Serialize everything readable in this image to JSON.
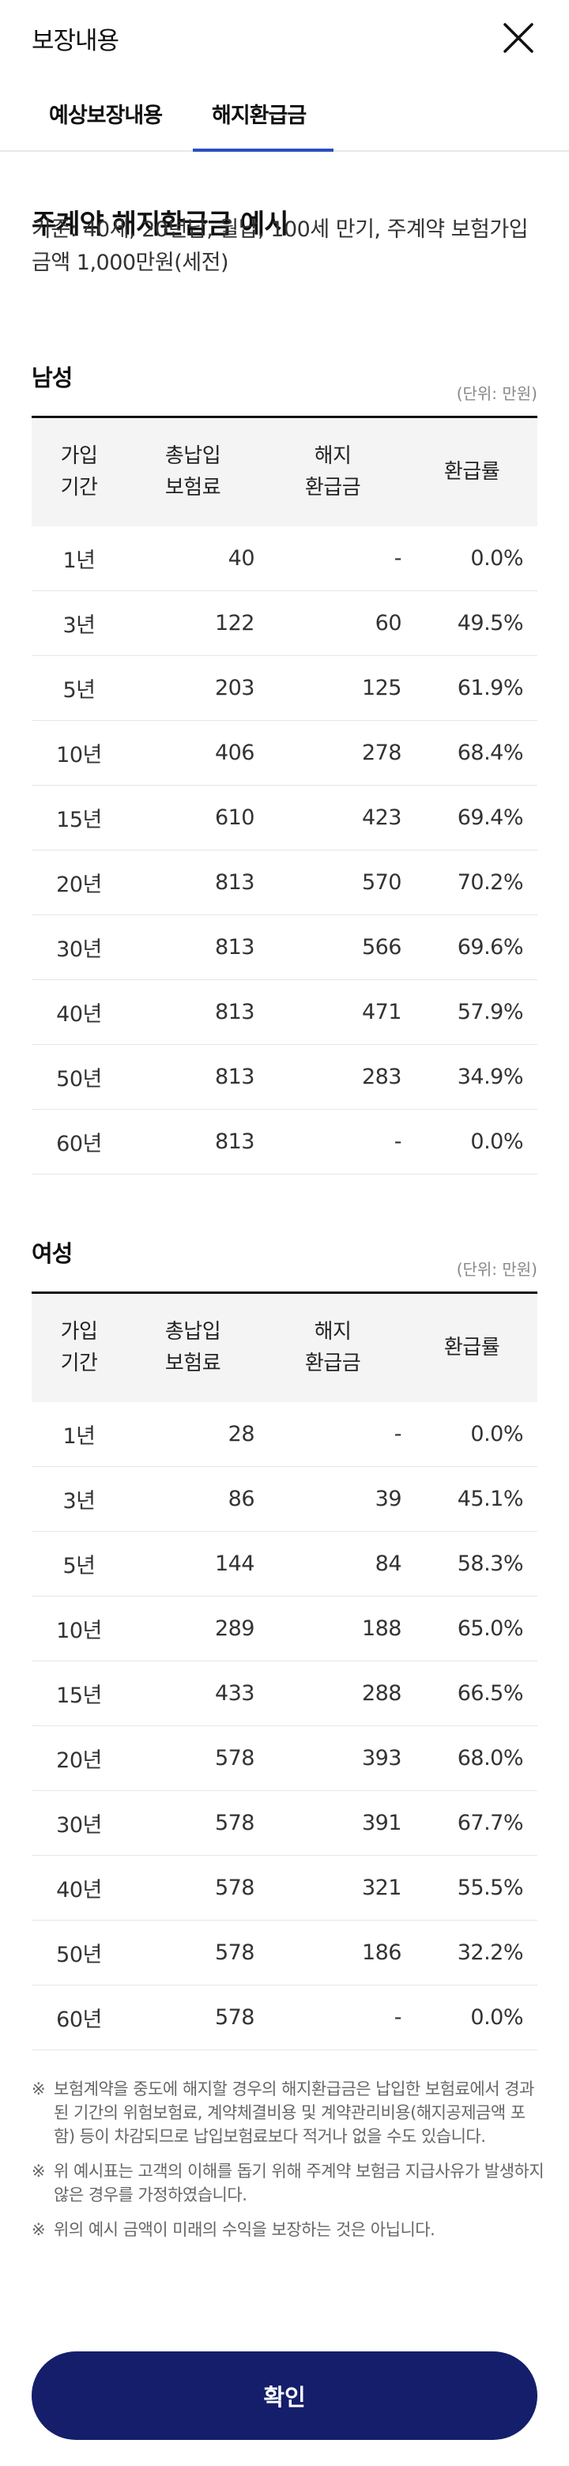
{
  "header": {
    "title": "보장내용"
  },
  "tabs": [
    {
      "label": "예상보장내용"
    },
    {
      "label": "해지환급금"
    }
  ],
  "main": {
    "heading": "주계약 해지환급금 예시",
    "basis": "기준: 40세, 20년납, 월납, 100세 만기, 주계약 보험가입금액 1,000만원(세전)"
  },
  "columns": {
    "period": [
      "가입",
      "기간"
    ],
    "paid": [
      "총납입",
      "보험료"
    ],
    "refund": [
      "해지",
      "환급금"
    ],
    "rate": "환급률"
  },
  "male": {
    "title": "남성",
    "unit": "(단위: 만원)",
    "rows": [
      {
        "period": "1년",
        "paid": "40",
        "refund": "-",
        "rate": "0.0%"
      },
      {
        "period": "3년",
        "paid": "122",
        "refund": "60",
        "rate": "49.5%"
      },
      {
        "period": "5년",
        "paid": "203",
        "refund": "125",
        "rate": "61.9%"
      },
      {
        "period": "10년",
        "paid": "406",
        "refund": "278",
        "rate": "68.4%"
      },
      {
        "period": "15년",
        "paid": "610",
        "refund": "423",
        "rate": "69.4%"
      },
      {
        "period": "20년",
        "paid": "813",
        "refund": "570",
        "rate": "70.2%"
      },
      {
        "period": "30년",
        "paid": "813",
        "refund": "566",
        "rate": "69.6%"
      },
      {
        "period": "40년",
        "paid": "813",
        "refund": "471",
        "rate": "57.9%"
      },
      {
        "period": "50년",
        "paid": "813",
        "refund": "283",
        "rate": "34.9%"
      },
      {
        "period": "60년",
        "paid": "813",
        "refund": "-",
        "rate": "0.0%"
      }
    ]
  },
  "female": {
    "title": "여성",
    "unit": "(단위: 만원)",
    "rows": [
      {
        "period": "1년",
        "paid": "28",
        "refund": "-",
        "rate": "0.0%"
      },
      {
        "period": "3년",
        "paid": "86",
        "refund": "39",
        "rate": "45.1%"
      },
      {
        "period": "5년",
        "paid": "144",
        "refund": "84",
        "rate": "58.3%"
      },
      {
        "period": "10년",
        "paid": "289",
        "refund": "188",
        "rate": "65.0%"
      },
      {
        "period": "15년",
        "paid": "433",
        "refund": "288",
        "rate": "66.5%"
      },
      {
        "period": "20년",
        "paid": "578",
        "refund": "393",
        "rate": "68.0%"
      },
      {
        "period": "30년",
        "paid": "578",
        "refund": "391",
        "rate": "67.7%"
      },
      {
        "period": "40년",
        "paid": "578",
        "refund": "321",
        "rate": "55.5%"
      },
      {
        "period": "50년",
        "paid": "578",
        "refund": "186",
        "rate": "32.2%"
      },
      {
        "period": "60년",
        "paid": "578",
        "refund": "-",
        "rate": "0.0%"
      }
    ]
  },
  "notes": {
    "mark": "※",
    "items": [
      "보험계약을 중도에 해지할 경우의 해지환급금은 납입한 보험료에서 경과된 기간의 위험보험료, 계약체결비용 및 계약관리비용(해지공제금액 포함) 등이 차감되므로 납입보험료보다 적거나 없을 수도 있습니다.",
      "위 예시표는 고객의 이해를 돕기 위해 주계약 보험금 지급사유가 발생하지 않은 경우를 가정하였습니다.",
      "위의 예시 금액이 미래의 수익을 보장하는 것은 아닙니다."
    ]
  },
  "confirm": {
    "label": "확인"
  },
  "colors": {
    "accent": "#2a4fc2",
    "button": "#141e6b"
  },
  "icons": {
    "close": "close-icon"
  }
}
